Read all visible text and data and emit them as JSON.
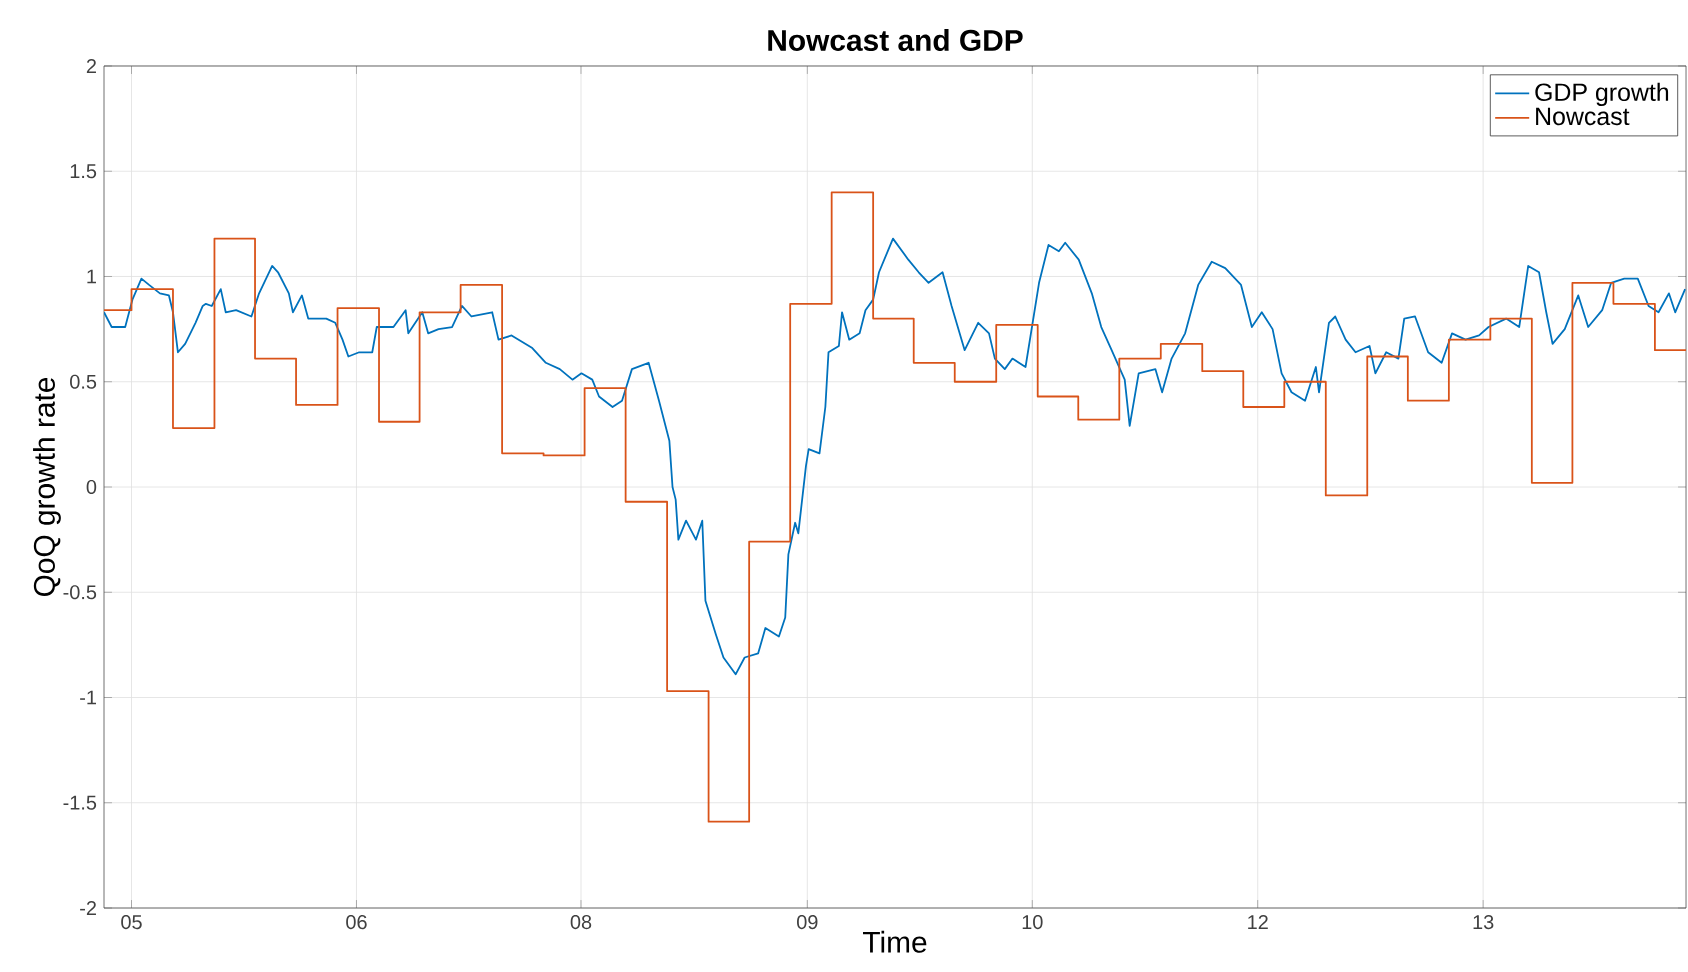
{
  "chart_data": {
    "type": "line",
    "title": "Nowcast and GDP",
    "xlabel": "Time",
    "ylabel": "QoQ growth rate",
    "xlim": [
      "2005-05-01",
      "2014-12-09"
    ],
    "ylim": [
      -2,
      2
    ],
    "xticks": [
      {
        "value": "2005-07-01",
        "label": "05"
      },
      {
        "value": "2006-11-12",
        "label": "06"
      },
      {
        "value": "2008-03-24",
        "label": "08"
      },
      {
        "value": "2009-08-08",
        "label": "09"
      },
      {
        "value": "2010-12-20",
        "label": "10"
      },
      {
        "value": "2012-05-03",
        "label": "12"
      },
      {
        "value": "2013-09-15",
        "label": "13"
      }
    ],
    "yticks": [
      -2,
      -1.5,
      -1,
      -0.5,
      0,
      0.5,
      1,
      1.5,
      2
    ],
    "grid": true,
    "legend": "top right",
    "series": [
      {
        "name": "GDP growth",
        "color": "#0072bd",
        "x": [
          "2005-05-01",
          "2005-05-18",
          "2005-06-17",
          "2005-07-03",
          "2005-07-23",
          "2005-08-09",
          "2005-09-02",
          "2005-09-22",
          "2005-10-01",
          "2005-10-12",
          "2005-10-28",
          "2005-11-20",
          "2005-12-06",
          "2005-12-13",
          "2005-12-26",
          "2006-01-15",
          "2006-01-26",
          "2006-02-18",
          "2006-03-24",
          "2006-04-10",
          "2006-05-09",
          "2006-05-22",
          "2006-06-15",
          "2006-06-24",
          "2006-07-14",
          "2006-07-28",
          "2006-09-06",
          "2006-09-26",
          "2006-10-12",
          "2006-10-25",
          "2006-11-18",
          "2006-12-17",
          "2006-12-27",
          "2007-02-02",
          "2007-03-01",
          "2007-03-07",
          "2007-04-07",
          "2007-04-20",
          "2007-05-13",
          "2007-06-12",
          "2007-07-04",
          "2007-07-25",
          "2007-09-09",
          "2007-09-23",
          "2007-10-22",
          "2007-12-07",
          "2008-01-06",
          "2008-02-06",
          "2008-03-05",
          "2008-03-25",
          "2008-04-18",
          "2008-05-03",
          "2008-06-02",
          "2008-06-23",
          "2008-07-15",
          "2008-08-21",
          "2008-09-13",
          "2008-10-06",
          "2008-10-13",
          "2008-10-20",
          "2008-10-26",
          "2008-11-12",
          "2008-12-04",
          "2008-12-18",
          "2008-12-25",
          "2009-01-17",
          "2009-02-03",
          "2009-03-02",
          "2009-03-22",
          "2009-04-21",
          "2009-05-07",
          "2009-06-06",
          "2009-06-20",
          "2009-06-27",
          "2009-07-12",
          "2009-07-19",
          "2009-08-05",
          "2009-08-11",
          "2009-09-04",
          "2009-09-17",
          "2009-09-24",
          "2009-10-17",
          "2009-10-24",
          "2009-11-09",
          "2009-12-02",
          "2009-12-15",
          "2010-01-01",
          "2010-01-14",
          "2010-02-14",
          "2010-03-20",
          "2010-04-12",
          "2010-05-04",
          "2010-06-04",
          "2010-06-24",
          "2010-07-23",
          "2010-08-22",
          "2010-09-15",
          "2010-09-28",
          "2010-10-20",
          "2010-11-06",
          "2010-12-05",
          "2011-01-04",
          "2011-01-25",
          "2011-02-17",
          "2011-03-03",
          "2011-04-02",
          "2011-05-01",
          "2011-05-22",
          "2011-06-14",
          "2011-07-13",
          "2011-07-24",
          "2011-08-13",
          "2011-09-19",
          "2011-10-04",
          "2011-10-25",
          "2011-11-24",
          "2011-12-23",
          "2012-01-22",
          "2012-02-21",
          "2012-03-27",
          "2012-04-20",
          "2012-05-12",
          "2012-06-05",
          "2012-06-25",
          "2012-07-17",
          "2012-08-16",
          "2012-09-09",
          "2012-09-16",
          "2012-10-08",
          "2012-10-22",
          "2012-11-14",
          "2012-12-06",
          "2013-01-06",
          "2013-01-19",
          "2013-02-12",
          "2013-03-11",
          "2013-03-24",
          "2013-04-17",
          "2013-05-16",
          "2013-06-15",
          "2013-07-08",
          "2013-08-07",
          "2013-09-06",
          "2013-09-27",
          "2013-11-05",
          "2013-12-04",
          "2013-12-24",
          "2014-01-17",
          "2014-02-02",
          "2014-02-16",
          "2014-03-15",
          "2014-04-14",
          "2014-05-06",
          "2014-06-06",
          "2014-06-26",
          "2014-07-25",
          "2014-08-24",
          "2014-09-17",
          "2014-10-09",
          "2014-11-01",
          "2014-11-15",
          "2014-12-07"
        ],
        "values": [
          0.83,
          0.76,
          0.76,
          0.89,
          0.99,
          0.96,
          0.92,
          0.91,
          0.83,
          0.64,
          0.68,
          0.78,
          0.86,
          0.87,
          0.86,
          0.94,
          0.83,
          0.84,
          0.81,
          0.92,
          1.05,
          1.02,
          0.92,
          0.83,
          0.91,
          0.8,
          0.8,
          0.78,
          0.7,
          0.62,
          0.64,
          0.64,
          0.76,
          0.76,
          0.84,
          0.73,
          0.83,
          0.73,
          0.75,
          0.76,
          0.86,
          0.81,
          0.83,
          0.7,
          0.72,
          0.66,
          0.59,
          0.56,
          0.51,
          0.54,
          0.51,
          0.43,
          0.38,
          0.41,
          0.56,
          0.59,
          0.41,
          0.22,
          0.0,
          -0.06,
          -0.25,
          -0.16,
          -0.25,
          -0.16,
          -0.54,
          -0.7,
          -0.81,
          -0.89,
          -0.81,
          -0.79,
          -0.67,
          -0.71,
          -0.62,
          -0.32,
          -0.17,
          -0.22,
          0.1,
          0.18,
          0.16,
          0.38,
          0.64,
          0.67,
          0.83,
          0.7,
          0.73,
          0.84,
          0.89,
          1.02,
          1.18,
          1.08,
          1.02,
          0.97,
          1.02,
          0.86,
          0.65,
          0.78,
          0.73,
          0.61,
          0.56,
          0.61,
          0.57,
          0.97,
          1.15,
          1.12,
          1.16,
          1.08,
          0.92,
          0.76,
          0.65,
          0.51,
          0.29,
          0.54,
          0.56,
          0.45,
          0.61,
          0.73,
          0.96,
          1.07,
          1.04,
          0.96,
          0.76,
          0.83,
          0.75,
          0.54,
          0.45,
          0.41,
          0.57,
          0.45,
          0.78,
          0.81,
          0.7,
          0.64,
          0.67,
          0.54,
          0.64,
          0.61,
          0.8,
          0.81,
          0.64,
          0.59,
          0.73,
          0.7,
          0.72,
          0.76,
          0.8,
          0.76,
          1.05,
          1.02,
          0.83,
          0.68,
          0.75,
          0.91,
          0.76,
          0.84,
          0.97,
          0.99,
          0.99,
          0.86,
          0.83,
          0.92,
          0.83,
          0.94
        ]
      },
      {
        "name": "Nowcast",
        "type": "step",
        "color": "#d95319",
        "x": [
          "2005-05-01",
          "2005-07-01",
          "2005-10-01",
          "2006-01-01",
          "2006-04-01",
          "2006-07-01",
          "2006-10-01",
          "2007-01-01",
          "2007-04-01",
          "2007-07-01",
          "2007-10-01",
          "2008-01-01",
          "2008-04-01",
          "2008-07-01",
          "2008-10-01",
          "2009-01-01",
          "2009-04-01",
          "2009-07-01",
          "2009-10-01",
          "2010-01-01",
          "2010-04-01",
          "2010-07-01",
          "2010-10-01",
          "2011-01-01",
          "2011-04-01",
          "2011-07-01",
          "2011-10-01",
          "2012-01-01",
          "2012-04-01",
          "2012-07-01",
          "2012-10-01",
          "2013-01-01",
          "2013-04-01",
          "2013-07-01",
          "2013-10-01",
          "2014-01-01",
          "2014-04-01",
          "2014-07-01",
          "2014-10-01",
          "2014-12-09"
        ],
        "values": [
          0.84,
          0.94,
          0.28,
          1.18,
          0.61,
          0.39,
          0.85,
          0.31,
          0.83,
          0.96,
          0.16,
          0.15,
          0.47,
          -0.07,
          -0.97,
          -1.59,
          -0.26,
          0.87,
          1.4,
          0.8,
          0.59,
          0.5,
          0.77,
          0.43,
          0.32,
          0.61,
          0.68,
          0.55,
          0.38,
          0.5,
          -0.04,
          0.62,
          0.41,
          0.7,
          0.8,
          0.02,
          0.97,
          0.87,
          0.65,
          0.65
        ]
      }
    ]
  }
}
